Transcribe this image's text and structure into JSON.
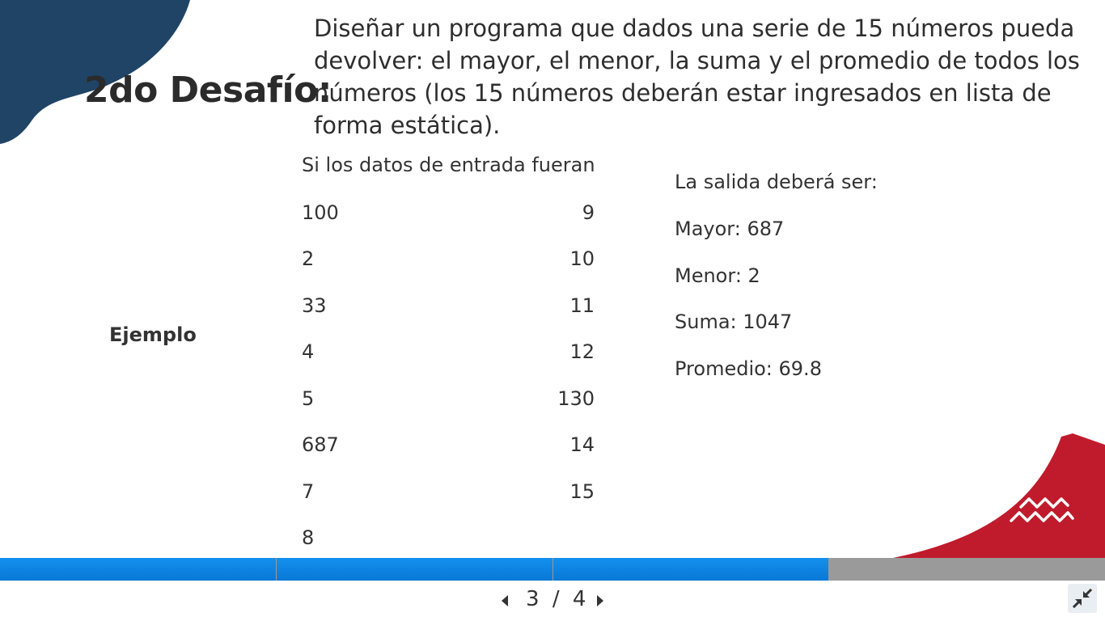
{
  "slide": {
    "title": "2do Desafío:",
    "description": "Diseñar un programa que dados una serie de 15 números pueda devolver: el mayor, el menor, la suma y el promedio de todos los números (los 15 números deberán estar ingresados en lista de forma estática).",
    "example_label": "Ejemplo",
    "input_heading": "Si los datos de entrada fueran",
    "input_left": [
      "100",
      "2",
      "33",
      "4",
      "5",
      "687",
      "7",
      "8"
    ],
    "input_right": [
      "9",
      "10",
      "11",
      "12",
      "130",
      "14",
      "15"
    ],
    "output_heading": "La salida deberá ser:",
    "outputs": [
      "Mayor: 687",
      "Menor: 2",
      "Suma: 1047",
      "Promedio: 69.8"
    ]
  },
  "navigation": {
    "current_page": "3",
    "separator": "/",
    "total_pages": "4",
    "progress_fraction": 0.75
  },
  "colors": {
    "accent_blue": "#0a80e0",
    "navy": "#1f4466",
    "red": "#c01b2c",
    "progress_track": "#9a9a9a"
  },
  "icons": {
    "prev": "caret-left-icon",
    "next": "caret-right-icon",
    "collapse": "collapse-arrows-icon",
    "waves": "waves-icon"
  }
}
